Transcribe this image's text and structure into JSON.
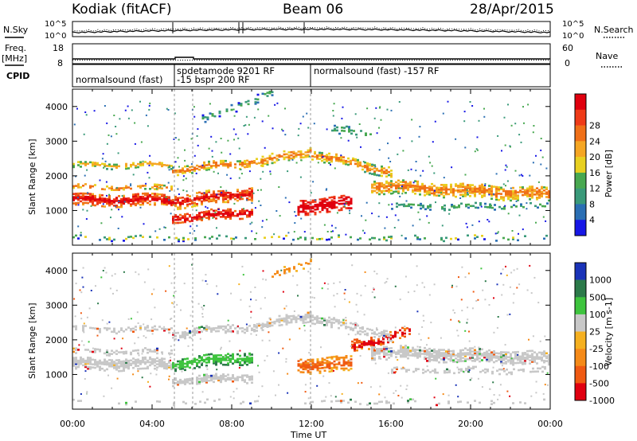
{
  "header": {
    "station": "Kodiak (fitACF)",
    "beam": "Beam 06",
    "date": "28/Apr/2015"
  },
  "left_labels": {
    "nsky": "N.Sky",
    "freq": "Freq.",
    "freq_unit": "[MHz]",
    "cpid": "CPID"
  },
  "right_labels": {
    "nsearch": "N.Search",
    "nave": "Nave"
  },
  "noise_axis": {
    "left_top": "10^5",
    "left_bottom": "10^0",
    "right_top": "10^5",
    "right_bottom": "10^0"
  },
  "freq_axis": {
    "left_top": "18",
    "left_bottom": "8",
    "right_top": "60",
    "right_bottom": "0"
  },
  "modes": {
    "m1": "normalsound (fast)",
    "m2": "spdetamode 9201 RF",
    "m3": "-15 bspr 200 RF",
    "m4": "normalsound (fast) -157 RF"
  },
  "colors": {
    "power_scale": [
      "#1717e6",
      "#2b6fb4",
      "#3a9a7a",
      "#48a850",
      "#e8d020",
      "#f5a623",
      "#f07018",
      "#ef3b18",
      "#e0000e"
    ],
    "velocity_scale": [
      "#1a33b8",
      "#2c7a4a",
      "#3ec43e",
      "#c8c8c8",
      "#f5b020",
      "#f58a18",
      "#f05a12",
      "#e00010"
    ],
    "gray_scatter": "#c8c8c8"
  },
  "chart_data": [
    {
      "type": "heatmap",
      "title": "Power",
      "ylabel": "Slant Range [km]",
      "xlabel": "Time UT",
      "ylim": [
        0,
        4500
      ],
      "yticks": [
        "1000",
        "2000",
        "3000",
        "4000"
      ],
      "xticks": [
        "00:00",
        "04:00",
        "08:00",
        "12:00",
        "16:00",
        "20:00",
        "00:00"
      ],
      "colorbar": {
        "label": "Power [dB]",
        "ticks": [
          "4",
          "8",
          "12",
          "16",
          "20",
          "24",
          "28"
        ]
      }
    },
    {
      "type": "heatmap",
      "title": "Velocity",
      "ylabel": "Slant Range [km]",
      "xlabel": "Time UT",
      "ylim": [
        0,
        4500
      ],
      "yticks": [
        "1000",
        "2000",
        "3000",
        "4000"
      ],
      "xticks": [
        "00:00",
        "04:00",
        "08:00",
        "12:00",
        "16:00",
        "20:00",
        "00:00"
      ],
      "colorbar": {
        "label": "Velocity [m s-1]",
        "ticks": [
          "1000",
          "500",
          "100",
          "25",
          "-25",
          "-100",
          "-500",
          "-1000"
        ]
      }
    }
  ]
}
